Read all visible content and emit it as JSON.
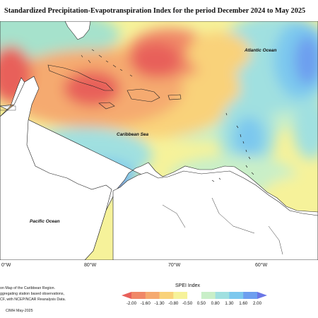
{
  "title": "Standardized Precipitation-Evapotranspiration Index for the period December 2024 to May 2025",
  "map": {
    "labels": {
      "atlantic": "Atlantic Ocean",
      "caribbean": "Caribbean Sea",
      "pacific": "Pacific Ocean"
    },
    "longitudes": [
      "0°W",
      "80°W",
      "70°W",
      "60°W"
    ]
  },
  "notes": {
    "line1": "on Map of the Caribbean Region.",
    "line2": "ggregating station based observations,",
    "line3": "CF, with NCEP/NCAR Reanalysis Data.",
    "credit": "CIMH May-2025"
  },
  "legend": {
    "title": "SPEI Index",
    "ticks": [
      "-2.00",
      "-1.60",
      "-1.30",
      "-0.80",
      "-0.50",
      "0.50",
      "0.80",
      "1.30",
      "1.60",
      "2.00"
    ],
    "colors": [
      "#e8605a",
      "#f08868",
      "#f5aa70",
      "#f9d27a",
      "#f6f29a",
      "#ffffff",
      "#c9efc8",
      "#a0e0e0",
      "#7cc8ee",
      "#6d9eef",
      "#6a76e6"
    ]
  }
}
